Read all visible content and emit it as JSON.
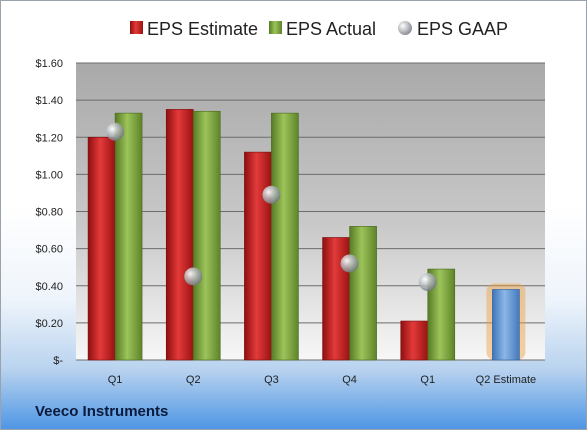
{
  "company": "Veeco Instruments",
  "colors": {
    "estimate": "#c81e1e",
    "actual": "#7aa53c",
    "gaap": "#9ea3a8",
    "projection": "#5b8fd1",
    "projection_glow": "#f0a040"
  },
  "chart_data": {
    "type": "bar",
    "title": "",
    "xlabel": "",
    "ylabel": "",
    "categories": [
      "Q1",
      "Q2",
      "Q3",
      "Q4",
      "Q1",
      "Q2 Estimate"
    ],
    "ylim": [
      0,
      1.6
    ],
    "ytick_values": [
      0,
      0.2,
      0.4,
      0.6,
      0.8,
      1.0,
      1.2,
      1.4,
      1.6
    ],
    "ytick_labels": [
      "$-",
      "$0.20",
      "$0.40",
      "$0.60",
      "$0.80",
      "$1.00",
      "$1.20",
      "$1.40",
      "$1.60"
    ],
    "grid": true,
    "legend_position": "top",
    "series": [
      {
        "name": "EPS Estimate",
        "values": [
          1.2,
          1.35,
          1.12,
          0.66,
          0.21,
          null
        ]
      },
      {
        "name": "EPS Actual",
        "values": [
          1.33,
          1.34,
          1.33,
          0.72,
          0.49,
          null
        ]
      },
      {
        "name": "EPS GAAP",
        "values": [
          1.23,
          0.45,
          0.89,
          0.52,
          0.42,
          null
        ]
      }
    ],
    "projection": {
      "category": "Q2 Estimate",
      "value": 0.38
    }
  }
}
